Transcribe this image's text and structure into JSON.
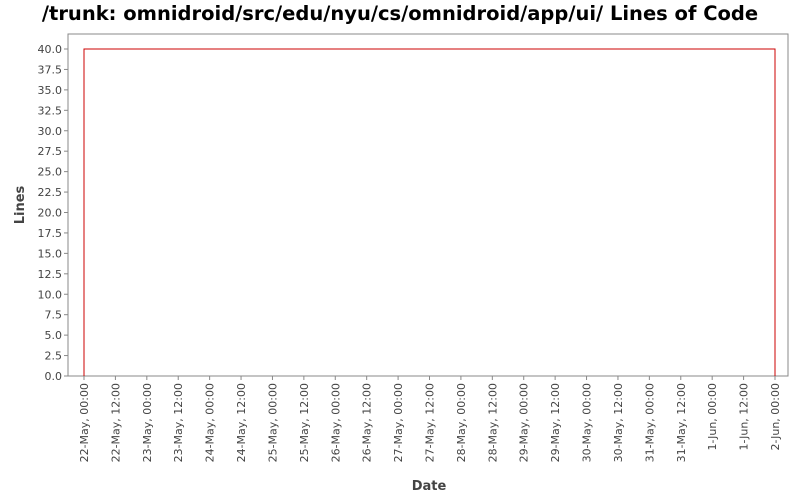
{
  "chart_data": {
    "type": "line",
    "title": "/trunk: omnidroid/src/edu/nyu/cs/omnidroid/app/ui/ Lines of Code",
    "xlabel": "Date",
    "ylabel": "Lines",
    "ylim": [
      0,
      40
    ],
    "y_ticks": [
      "0.0",
      "2.5",
      "5.0",
      "7.5",
      "10.0",
      "12.5",
      "15.0",
      "17.5",
      "20.0",
      "22.5",
      "25.0",
      "27.5",
      "30.0",
      "32.5",
      "35.0",
      "37.5",
      "40.0"
    ],
    "x_ticks": [
      "22-May, 00:00",
      "22-May, 12:00",
      "23-May, 00:00",
      "23-May, 12:00",
      "24-May, 00:00",
      "24-May, 12:00",
      "25-May, 00:00",
      "25-May, 12:00",
      "26-May, 00:00",
      "26-May, 12:00",
      "27-May, 00:00",
      "27-May, 12:00",
      "28-May, 00:00",
      "28-May, 12:00",
      "29-May, 00:00",
      "29-May, 12:00",
      "30-May, 00:00",
      "30-May, 12:00",
      "31-May, 00:00",
      "31-May, 12:00",
      "1-Jun, 00:00",
      "1-Jun, 12:00",
      "2-Jun, 00:00"
    ],
    "grid": false,
    "series": [
      {
        "color": "#cc0000",
        "points": [
          {
            "x": "22-May, 00:00",
            "y": 0
          },
          {
            "x": "22-May, 00:00",
            "y": 40
          },
          {
            "x": "2-Jun, 00:00",
            "y": 40
          },
          {
            "x": "2-Jun, 00:00",
            "y": 0
          }
        ]
      }
    ]
  }
}
